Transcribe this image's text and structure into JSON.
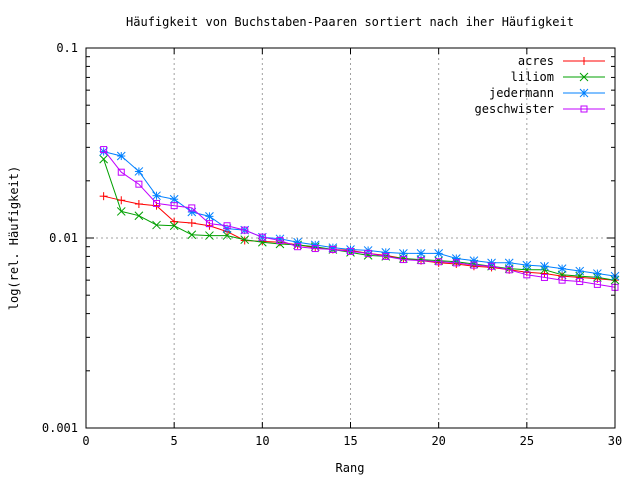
{
  "chart_data": {
    "type": "line",
    "title": "Häufigkeit von Buchstaben-Paaren sortiert nach iher Häufigkeit",
    "xlabel": "Rang",
    "ylabel": "log(rel. Häufigkeit)",
    "xlim": [
      0,
      30
    ],
    "ylim": [
      0.001,
      0.1
    ],
    "y_scale": "log",
    "grid": true,
    "legend_position": "top-right",
    "x_ticks": [
      0,
      5,
      10,
      15,
      20,
      25,
      30
    ],
    "y_ticks": [
      0.001,
      0.01,
      0.1
    ],
    "x_tick_labels": [
      "0",
      "5",
      "10",
      "15",
      "20",
      "25",
      "30"
    ],
    "y_tick_labels": [
      "0.001",
      "0.01",
      "0.1"
    ],
    "x": [
      1,
      2,
      3,
      4,
      5,
      6,
      7,
      8,
      9,
      10,
      11,
      12,
      13,
      14,
      15,
      16,
      17,
      18,
      19,
      20,
      21,
      22,
      23,
      24,
      25,
      26,
      27,
      28,
      29,
      30
    ],
    "series": [
      {
        "name": "acres",
        "color": "#ff0000",
        "marker": "plus",
        "values": [
          0.0166,
          0.0158,
          0.0151,
          0.0148,
          0.0122,
          0.012,
          0.0116,
          0.0108,
          0.0097,
          0.0096,
          0.0095,
          0.0092,
          0.0089,
          0.0087,
          0.0086,
          0.0083,
          0.0081,
          0.0078,
          0.0076,
          0.0074,
          0.0073,
          0.0071,
          0.007,
          0.0068,
          0.0066,
          0.0065,
          0.0063,
          0.0062,
          0.0061,
          0.006
        ]
      },
      {
        "name": "liliom",
        "color": "#00a000",
        "marker": "x",
        "values": [
          0.026,
          0.0138,
          0.0131,
          0.0117,
          0.0116,
          0.0104,
          0.0103,
          0.0103,
          0.0098,
          0.0095,
          0.0093,
          0.0092,
          0.009,
          0.0087,
          0.0084,
          0.0081,
          0.008,
          0.0078,
          0.0077,
          0.0076,
          0.0075,
          0.0073,
          0.0071,
          0.0069,
          0.0068,
          0.0068,
          0.0064,
          0.0063,
          0.0062,
          0.006
        ]
      },
      {
        "name": "jedermann",
        "color": "#0080ff",
        "marker": "star",
        "values": [
          0.0285,
          0.027,
          0.0224,
          0.0167,
          0.016,
          0.0137,
          0.013,
          0.0112,
          0.011,
          0.0101,
          0.0099,
          0.0095,
          0.0092,
          0.0089,
          0.0087,
          0.0086,
          0.0084,
          0.0083,
          0.0083,
          0.0083,
          0.0078,
          0.0076,
          0.0074,
          0.0074,
          0.0072,
          0.0071,
          0.0069,
          0.0067,
          0.0065,
          0.0063
        ]
      },
      {
        "name": "geschwister",
        "color": "#c000ff",
        "marker": "square",
        "values": [
          0.0292,
          0.0222,
          0.0192,
          0.0152,
          0.0148,
          0.0144,
          0.0119,
          0.0116,
          0.011,
          0.0101,
          0.0097,
          0.009,
          0.0088,
          0.0087,
          0.0085,
          0.0083,
          0.008,
          0.0077,
          0.0076,
          0.0075,
          0.0074,
          0.0072,
          0.0071,
          0.0068,
          0.0064,
          0.0062,
          0.006,
          0.0059,
          0.0057,
          0.0055
        ]
      }
    ]
  }
}
